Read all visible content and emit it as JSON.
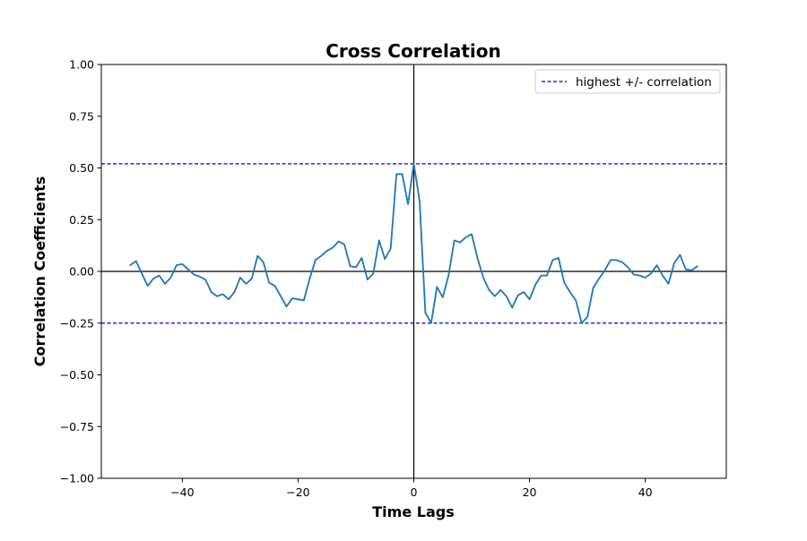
{
  "chart_data": {
    "type": "line",
    "title": "Cross Correlation",
    "xlabel": "Time Lags",
    "ylabel": "Correlation Coefficients",
    "xlim": [
      -54,
      54
    ],
    "ylim": [
      -1.0,
      1.0
    ],
    "xticks": [
      -40,
      -20,
      0,
      20,
      40
    ],
    "xtick_labels": [
      "−40",
      "−20",
      "0",
      "20",
      "40"
    ],
    "yticks": [
      -1.0,
      -0.75,
      -0.5,
      -0.25,
      0.0,
      0.25,
      0.5,
      0.75,
      1.0
    ],
    "ytick_labels": [
      "−1.00",
      "−0.75",
      "−0.50",
      "−0.25",
      "0.00",
      "0.25",
      "0.50",
      "0.75",
      "1.00"
    ],
    "grid": false,
    "legend_position": "upper-right",
    "series": [
      {
        "color": "#1f77b4",
        "x": [
          -49,
          -48,
          -47,
          -46,
          -45,
          -44,
          -43,
          -42,
          -41,
          -40,
          -39,
          -38,
          -37,
          -36,
          -35,
          -34,
          -33,
          -32,
          -31,
          -30,
          -29,
          -28,
          -27,
          -26,
          -25,
          -24,
          -23,
          -22,
          -21,
          -20,
          -19,
          -18,
          -17,
          -16,
          -15,
          -14,
          -13,
          -12,
          -11,
          -10,
          -9,
          -8,
          -7,
          -6,
          -5,
          -4,
          -3,
          -2,
          -1,
          0,
          1,
          2,
          3,
          4,
          5,
          6,
          7,
          8,
          9,
          10,
          11,
          12,
          13,
          14,
          15,
          16,
          17,
          18,
          19,
          20,
          21,
          22,
          23,
          24,
          25,
          26,
          27,
          28,
          29,
          30,
          31,
          32,
          33,
          34,
          35,
          36,
          37,
          38,
          39,
          40,
          41,
          42,
          43,
          44,
          45,
          46,
          47,
          48,
          49
        ],
        "y": [
          0.03,
          0.05,
          -0.01,
          -0.07,
          -0.035,
          -0.02,
          -0.06,
          -0.03,
          0.03,
          0.035,
          0.01,
          -0.015,
          -0.025,
          -0.04,
          -0.1,
          -0.12,
          -0.11,
          -0.135,
          -0.1,
          -0.03,
          -0.06,
          -0.035,
          0.075,
          0.045,
          -0.055,
          -0.07,
          -0.12,
          -0.17,
          -0.13,
          -0.135,
          -0.14,
          -0.035,
          0.055,
          0.075,
          0.1,
          0.115,
          0.145,
          0.13,
          0.025,
          0.02,
          0.065,
          -0.04,
          -0.01,
          0.15,
          0.06,
          0.11,
          0.47,
          0.47,
          0.325,
          0.52,
          0.34,
          -0.2,
          -0.25,
          -0.075,
          -0.125,
          -0.02,
          0.15,
          0.14,
          0.165,
          0.18,
          0.065,
          -0.03,
          -0.09,
          -0.12,
          -0.09,
          -0.12,
          -0.175,
          -0.115,
          -0.1,
          -0.135,
          -0.065,
          -0.02,
          -0.02,
          0.055,
          0.065,
          -0.055,
          -0.1,
          -0.14,
          -0.25,
          -0.22,
          -0.08,
          -0.035,
          0.005,
          0.055,
          0.055,
          0.045,
          0.02,
          -0.015,
          -0.02,
          -0.03,
          -0.01,
          0.03,
          -0.02,
          -0.06,
          0.04,
          0.08,
          0.01,
          0.005,
          0.025
        ]
      }
    ],
    "reference_lines": {
      "highest_positive": 0.52,
      "highest_negative": -0.25,
      "color": "#0000cc",
      "label": "highest +/- correlation"
    },
    "zero_lines": {
      "color": "#000000"
    }
  }
}
